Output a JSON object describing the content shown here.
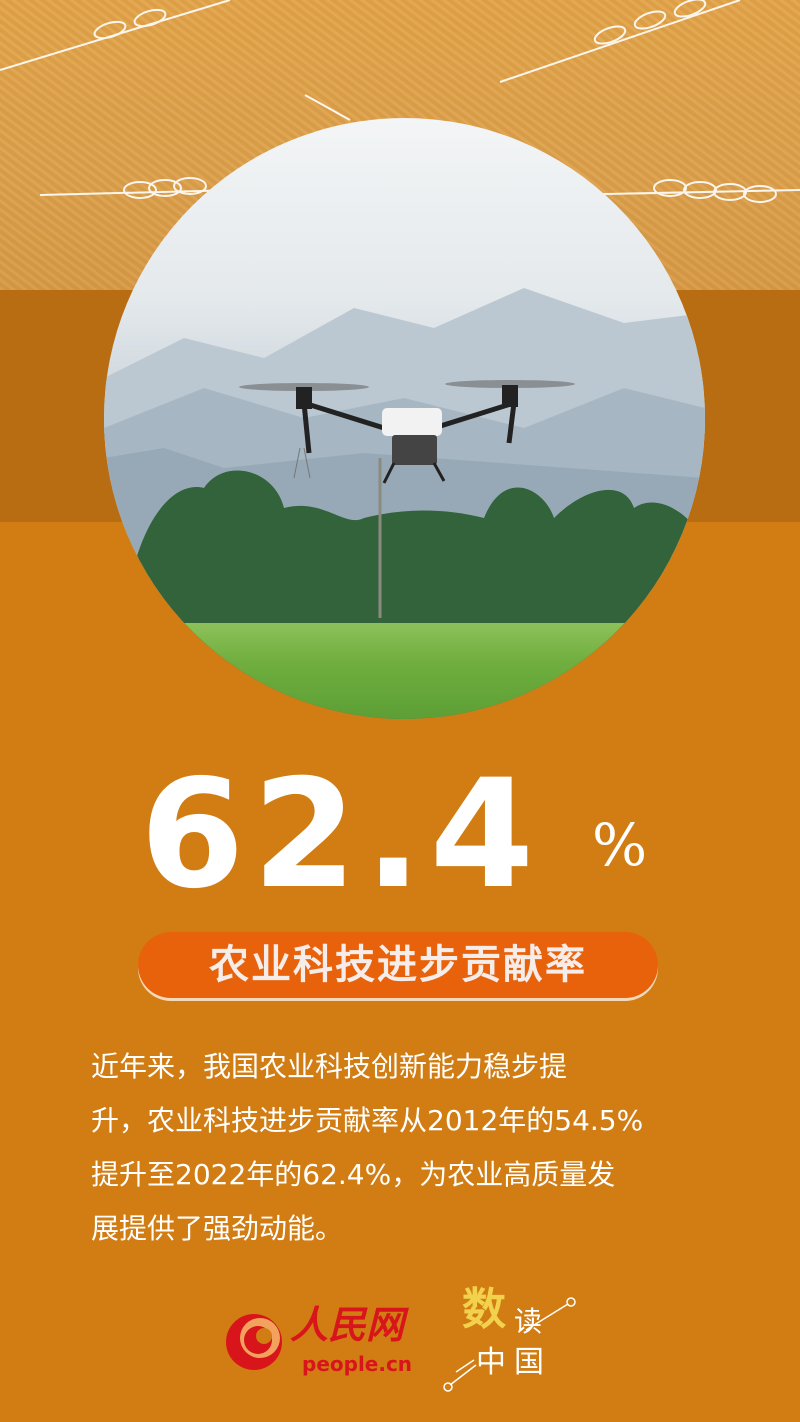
{
  "headline": {
    "value": "62.4",
    "unit": "%"
  },
  "label": "农业科技进步贡献率",
  "body": {
    "lines": [
      "近年来，我国农业科技创新能力稳步提",
      "升，农业科技进步贡献率从2012年的54.5%",
      "提升至2022年的62.4%，为农业高质量发",
      "展提供了强劲动能。"
    ]
  },
  "footer": {
    "logo_text": "人民网",
    "logo_url": "people.cn",
    "brand_char1": "数",
    "brand_char2": "读",
    "brand_char3": "中国"
  },
  "colors": {
    "background": "#D17D13",
    "band": "#B96D12",
    "pill": "#E8620B",
    "logo_red": "#D8151A",
    "brand_yellow": "#F2D24C"
  },
  "photo": {
    "subject": "agricultural drone spraying over rice field",
    "icon": "drone-photo"
  }
}
